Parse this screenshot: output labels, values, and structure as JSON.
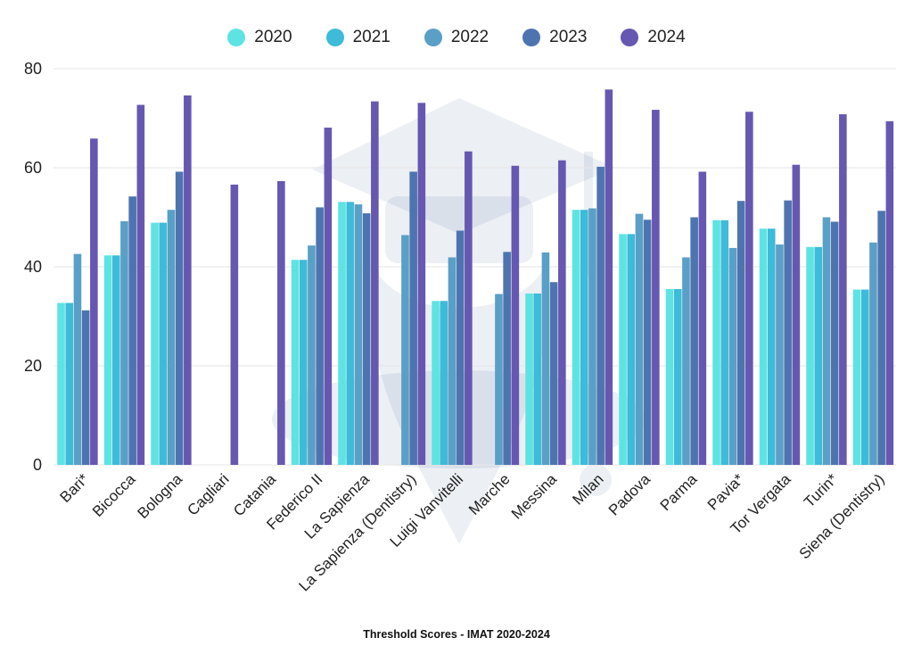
{
  "chart_data": {
    "type": "bar",
    "title": "Threshold Scores - IMAT 2020-2024",
    "xlabel": "",
    "ylabel": "",
    "ylim": [
      0,
      80
    ],
    "yticks": [
      0,
      20,
      40,
      60,
      80
    ],
    "grid": true,
    "legend_position": "top-center",
    "categories": [
      "Bari*",
      "Bicocca",
      "Bologna",
      "Cagliari",
      "Catania",
      "Federico II",
      "La Sapienza",
      "La Sapienza (Dentistry)",
      "Luigi Vanvitelli",
      "Marche",
      "Messina",
      "Milan",
      "Padova",
      "Parma",
      "Pavia*",
      "Tor Vergata",
      "Turin*",
      "Siena (Dentistry)"
    ],
    "series": [
      {
        "name": "2020",
        "color": "#5ee3e3",
        "values": [
          32.7,
          42.3,
          48.9,
          null,
          null,
          41.4,
          53.1,
          null,
          33.1,
          null,
          34.6,
          51.5,
          46.6,
          35.5,
          49.4,
          47.7,
          44.0,
          35.4
        ]
      },
      {
        "name": "2021",
        "color": "#3dbbd8",
        "values": [
          32.7,
          42.3,
          48.9,
          null,
          null,
          41.4,
          53.1,
          null,
          33.1,
          null,
          34.6,
          51.5,
          46.6,
          35.5,
          49.4,
          47.7,
          44.0,
          35.4
        ]
      },
      {
        "name": "2022",
        "color": "#5a9fc6",
        "values": [
          42.6,
          49.2,
          51.5,
          null,
          null,
          44.3,
          52.6,
          46.4,
          41.9,
          34.5,
          42.9,
          51.8,
          50.7,
          41.9,
          43.8,
          44.5,
          50.0,
          44.9
        ]
      },
      {
        "name": "2023",
        "color": "#4e74b0",
        "values": [
          31.2,
          54.2,
          59.2,
          null,
          null,
          52.0,
          50.8,
          59.2,
          47.3,
          43.0,
          36.9,
          60.2,
          49.5,
          50.0,
          53.3,
          53.4,
          49.1,
          51.3
        ]
      },
      {
        "name": "2024",
        "color": "#6658b0",
        "values": [
          65.9,
          72.7,
          74.6,
          56.6,
          57.3,
          68.1,
          73.4,
          73.1,
          63.3,
          60.4,
          61.5,
          75.8,
          71.7,
          59.2,
          71.3,
          60.6,
          70.8,
          69.4
        ]
      }
    ]
  }
}
